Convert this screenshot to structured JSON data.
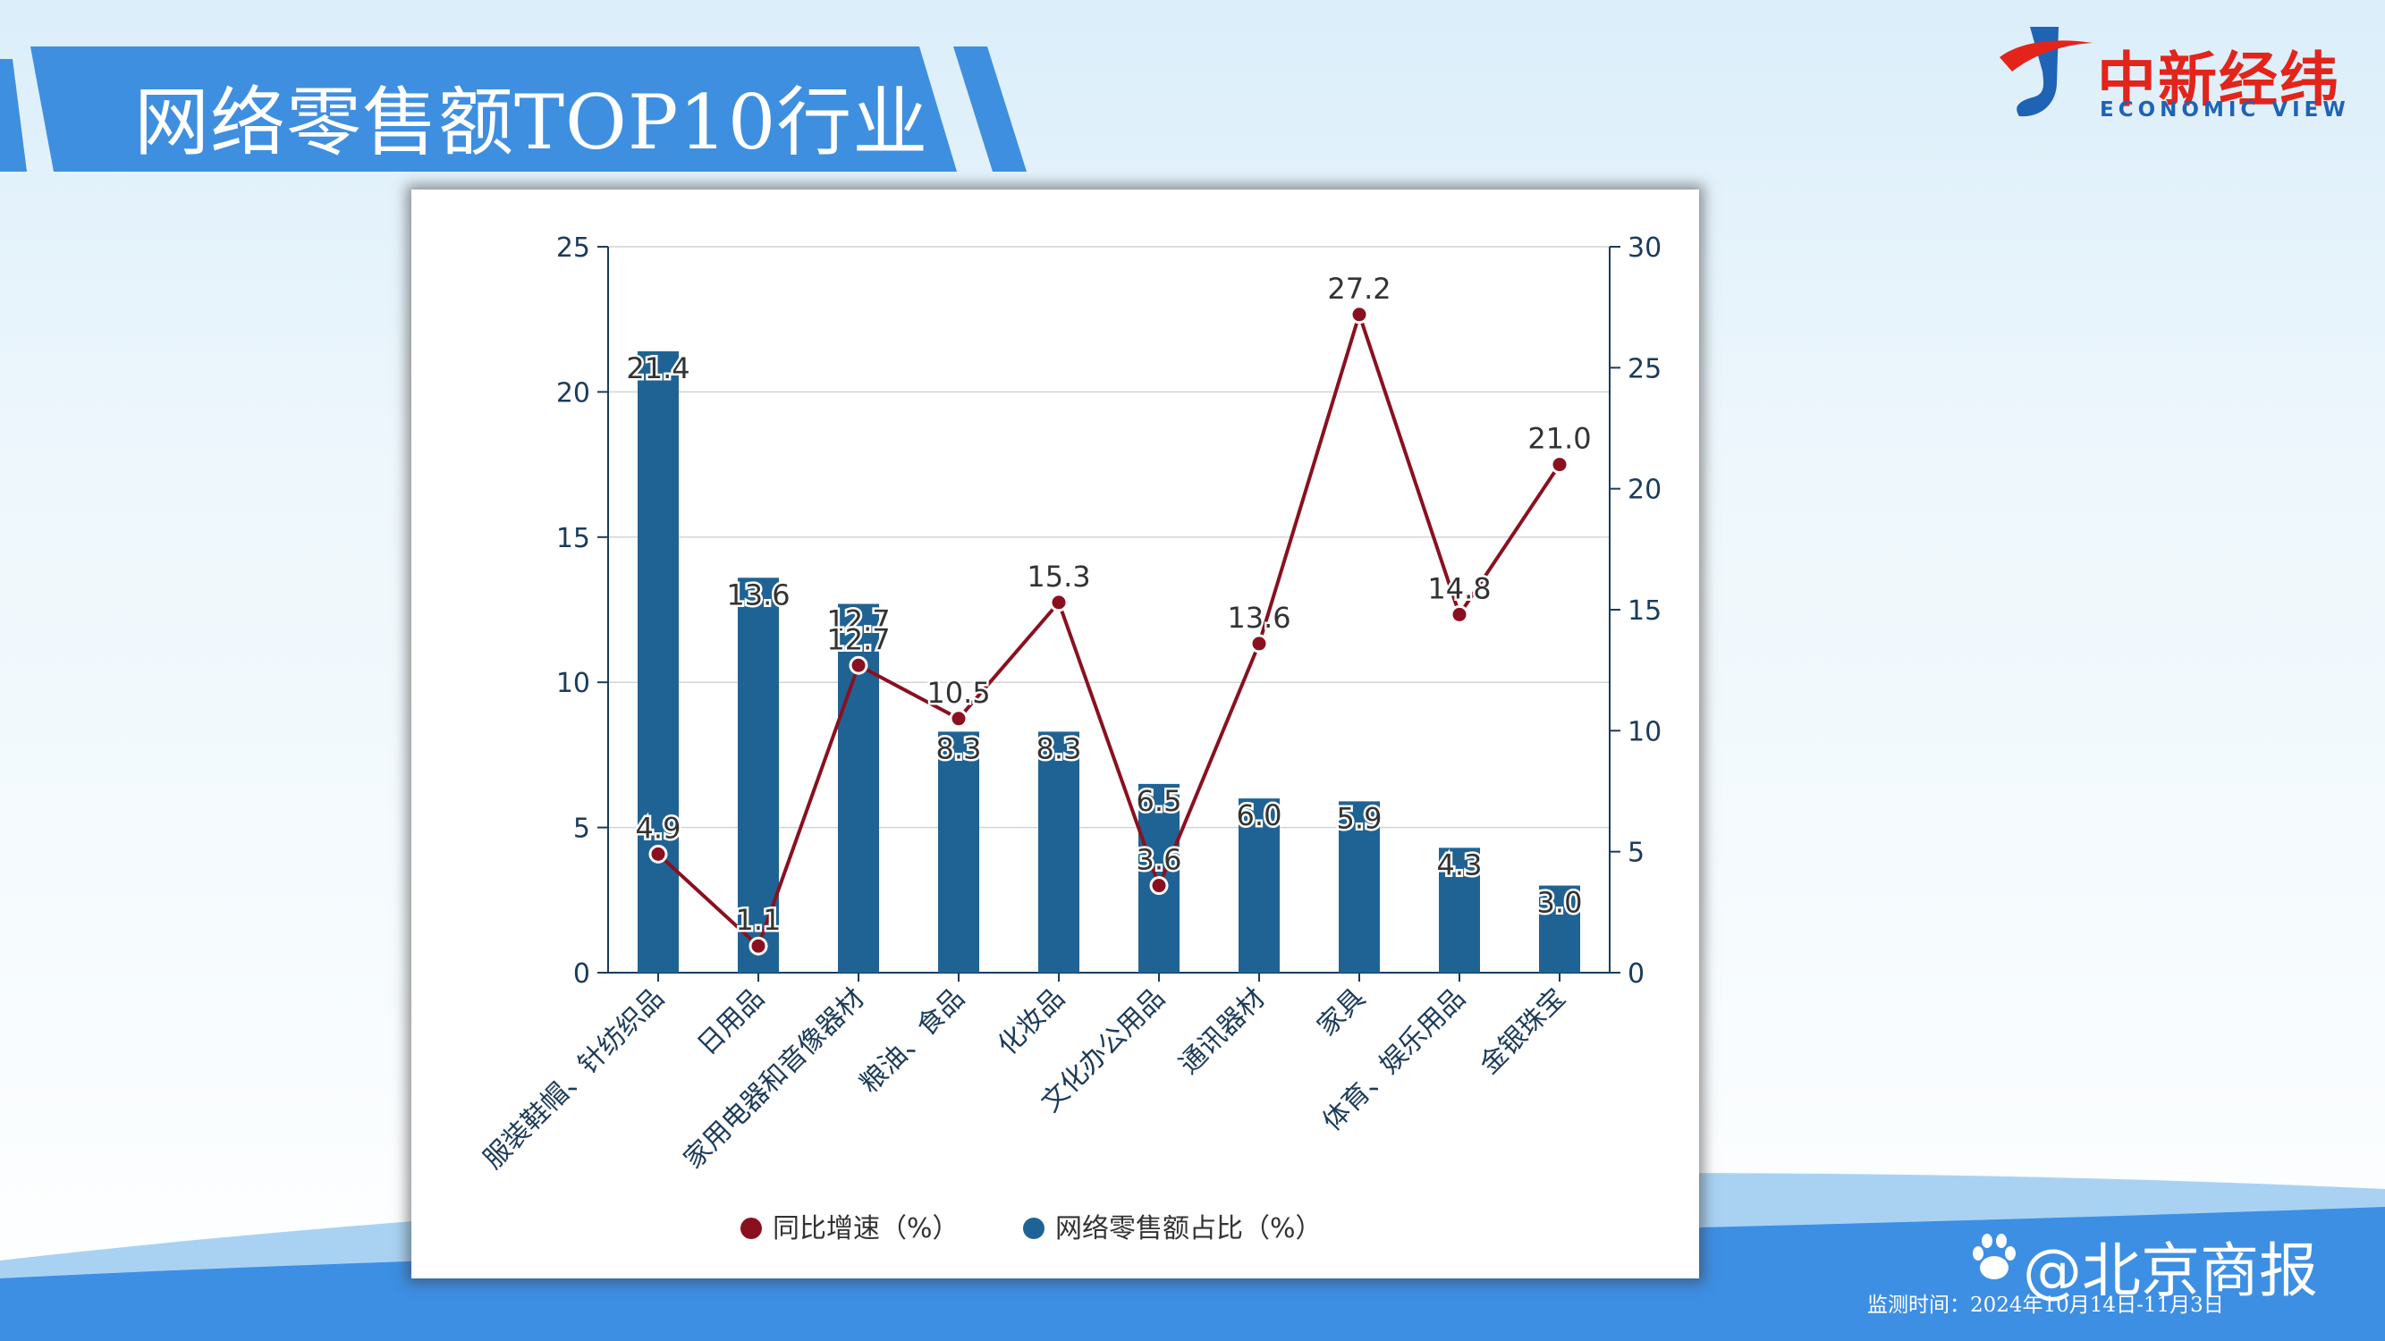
{
  "header": {
    "title": "网络零售额TOP10行业"
  },
  "logo": {
    "name_cn": "中新经纬",
    "name_en": "ECONOMIC VIEW"
  },
  "footer": {
    "watermark": "@北京商报",
    "monitor_text": "监测时间：2024年10月14日-11月3日"
  },
  "colors": {
    "bar": "#1f6394",
    "line": "#8a1020",
    "banner": "#3f8fe0",
    "logo_red": "#e3241b",
    "logo_blue": "#1f63b5"
  },
  "chart_data": {
    "type": "bar",
    "categories": [
      "服装鞋帽、针纺织品",
      "日用品",
      "家用电器和音像器材",
      "粮油、食品",
      "化妆品",
      "文化办公用品",
      "通讯器材",
      "家具",
      "体育、娱乐用品",
      "金银珠宝"
    ],
    "series": [
      {
        "name": "网络零售额占比（%）",
        "type": "bar",
        "axis": "left",
        "values": [
          21.4,
          13.6,
          12.7,
          8.3,
          8.3,
          6.5,
          6.0,
          5.9,
          4.3,
          3.0
        ],
        "labels": [
          "21.4",
          "13.6",
          "12.7",
          "8.3",
          "8.3",
          "6.5",
          "6.0",
          "5.9",
          "4.3",
          "3.0"
        ]
      },
      {
        "name": "同比增速（%）",
        "type": "line",
        "axis": "right",
        "values": [
          4.9,
          1.1,
          12.7,
          10.5,
          15.3,
          3.6,
          13.6,
          27.2,
          14.8,
          21.0
        ],
        "labels": [
          "4.9",
          "1.1",
          "12.7",
          "10.5",
          "15.3",
          "3.6",
          "13.6",
          "27.2",
          "14.8",
          "21.0"
        ]
      }
    ],
    "y_left": {
      "ylim": [
        0,
        25
      ],
      "ticks": [
        "0",
        "5",
        "10",
        "15",
        "20",
        "25"
      ]
    },
    "y_right": {
      "ylim": [
        0,
        30
      ],
      "ticks": [
        "0",
        "5",
        "10",
        "15",
        "20",
        "25",
        "30"
      ]
    },
    "grid": true,
    "legend": {
      "position": "bottom-center",
      "items": [
        {
          "label": "同比增速（%）",
          "series": 1
        },
        {
          "label": "网络零售额占比（%）",
          "series": 0
        }
      ]
    }
  }
}
